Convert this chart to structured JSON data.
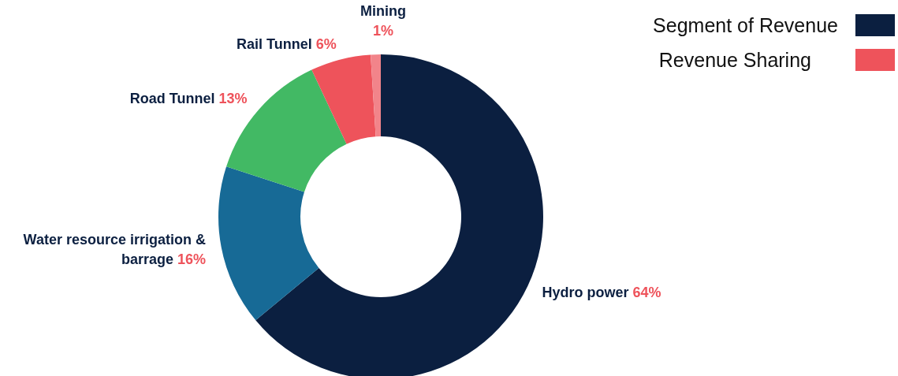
{
  "chart_data": {
    "type": "donut",
    "categories": [
      "Hydro power",
      "Water resource irrigation & barrage",
      "Road Tunnel",
      "Rail Tunnel",
      "Mining"
    ],
    "values": [
      64,
      16,
      13,
      6,
      1
    ],
    "value_labels": [
      "64%",
      "16%",
      "13%",
      "6%",
      "1%"
    ],
    "colors": [
      "#0b1f40",
      "#176a96",
      "#42b964",
      "#ee535b",
      "#f2848a"
    ],
    "annotations": [
      "Segment of Revenue",
      "Revenue Sharing"
    ]
  }
}
